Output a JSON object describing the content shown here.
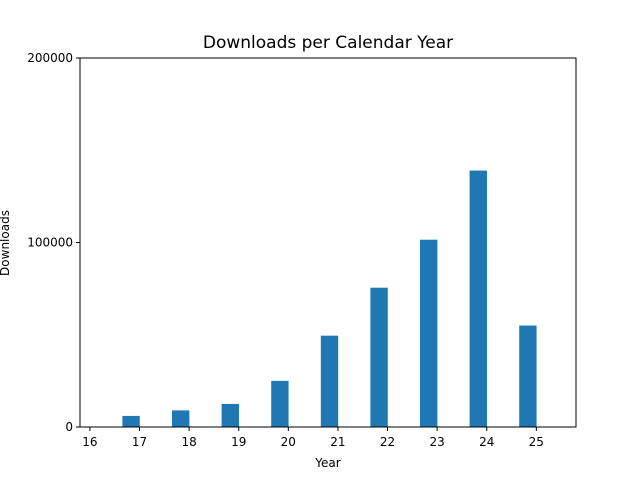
{
  "chart_data": {
    "type": "bar",
    "title": "Downloads per Calendar Year",
    "xlabel": "Year",
    "ylabel": "Downloads",
    "xlim": [
      15.8,
      25.8
    ],
    "ylim": [
      0,
      200000
    ],
    "x_ticks": [
      16,
      17,
      18,
      19,
      20,
      21,
      22,
      23,
      24,
      25
    ],
    "y_ticks": [
      0,
      100000,
      200000
    ],
    "bar_width": 0.35,
    "color": "#1f77b4",
    "grid": false,
    "categories": [
      "17",
      "18",
      "19",
      "20",
      "21",
      "22",
      "23",
      "24",
      "25"
    ],
    "x": [
      16.83,
      17.83,
      18.83,
      19.83,
      20.83,
      21.83,
      22.83,
      23.83,
      24.83
    ],
    "values": [
      6000,
      9000,
      12500,
      25000,
      49500,
      75500,
      101500,
      139000,
      55000
    ]
  }
}
